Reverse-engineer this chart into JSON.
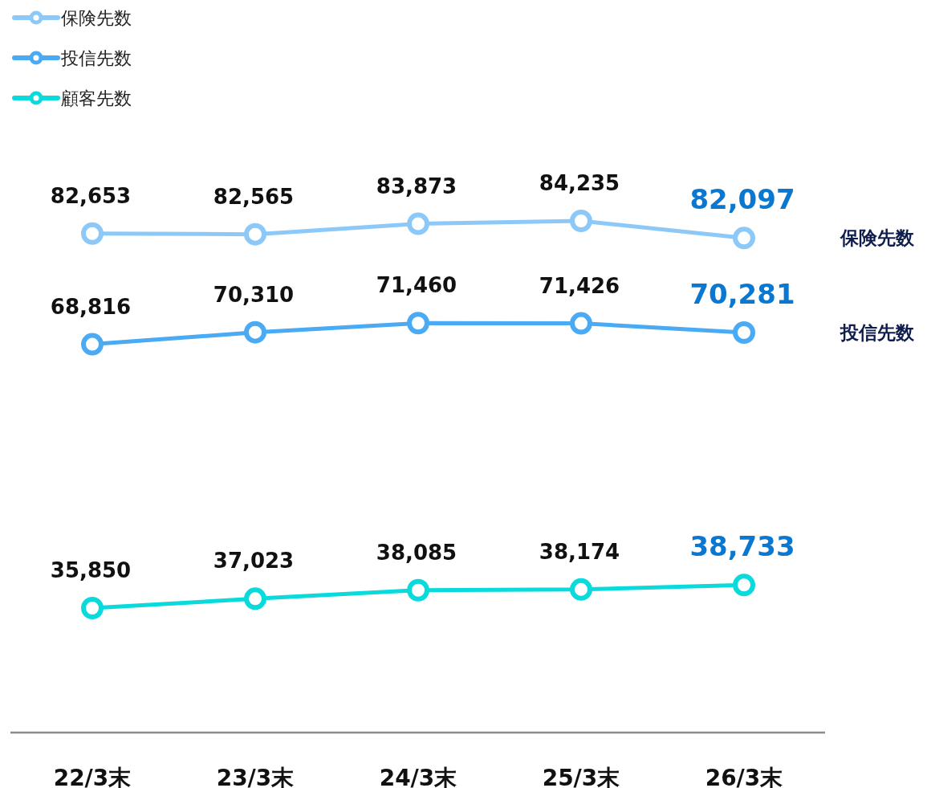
{
  "chart_data": {
    "type": "line",
    "categories": [
      "22/3末",
      "23/3末",
      "24/3末",
      "25/3末",
      "26/3末"
    ],
    "series": [
      {
        "name": "保険先数",
        "color": "#8cc9f8",
        "values": [
          82653,
          82565,
          83873,
          84235,
          82097
        ],
        "value_labels": [
          "82,653",
          "82,565",
          "83,873",
          "84,235",
          "82,097"
        ]
      },
      {
        "name": "投信先数",
        "color": "#4aaaf4",
        "values": [
          68816,
          70310,
          71460,
          71426,
          70281
        ],
        "value_labels": [
          "68,816",
          "70,310",
          "71,460",
          "71,426",
          "70,281"
        ]
      },
      {
        "name": "顧客先数",
        "color": "#0adadc",
        "values": [
          35850,
          37023,
          38085,
          38174,
          38733
        ],
        "value_labels": [
          "35,850",
          "37,023",
          "38,085",
          "38,174",
          "38,733"
        ]
      }
    ],
    "legend": "top left",
    "marker": "circle",
    "line_style": "solid",
    "annotations": [
      "保険先数",
      "投信先数"
    ]
  }
}
